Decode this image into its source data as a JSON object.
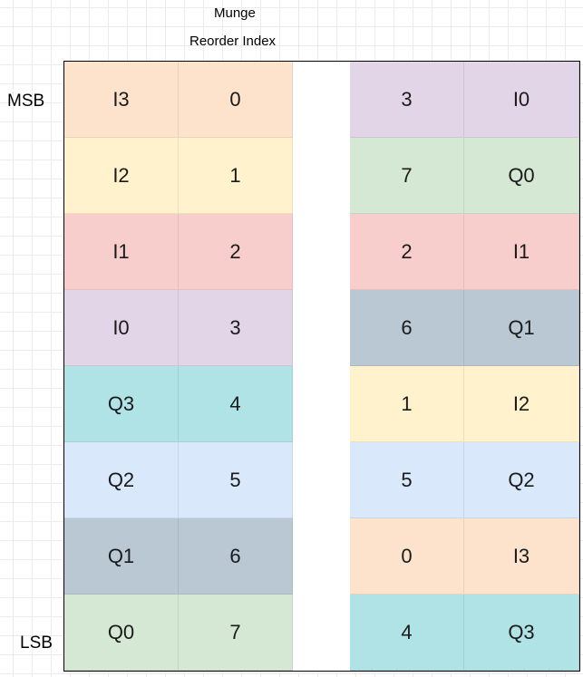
{
  "header": {
    "title": "Munge",
    "subtitle": "Reorder Index"
  },
  "side_labels": {
    "msb": "MSB",
    "lsb": "LSB"
  },
  "colors": {
    "I3": "#fde3cc",
    "I2": "#fff2cc",
    "I1": "#f8cecc",
    "I0": "#e1d5e7",
    "Q3": "#b0e3e6",
    "Q2": "#dae8fc",
    "Q1": "#bac8d3",
    "Q0": "#d5e8d4"
  },
  "left_rows": [
    {
      "label": "I3",
      "index": "0"
    },
    {
      "label": "I2",
      "index": "1"
    },
    {
      "label": "I1",
      "index": "2"
    },
    {
      "label": "I0",
      "index": "3"
    },
    {
      "label": "Q3",
      "index": "4"
    },
    {
      "label": "Q2",
      "index": "5"
    },
    {
      "label": "Q1",
      "index": "6"
    },
    {
      "label": "Q0",
      "index": "7"
    }
  ],
  "right_rows": [
    {
      "index": "3",
      "label": "I0"
    },
    {
      "index": "7",
      "label": "Q0"
    },
    {
      "index": "2",
      "label": "I1"
    },
    {
      "index": "6",
      "label": "Q1"
    },
    {
      "index": "1",
      "label": "I2"
    },
    {
      "index": "5",
      "label": "Q2"
    },
    {
      "index": "0",
      "label": "I3"
    },
    {
      "index": "4",
      "label": "Q3"
    }
  ]
}
